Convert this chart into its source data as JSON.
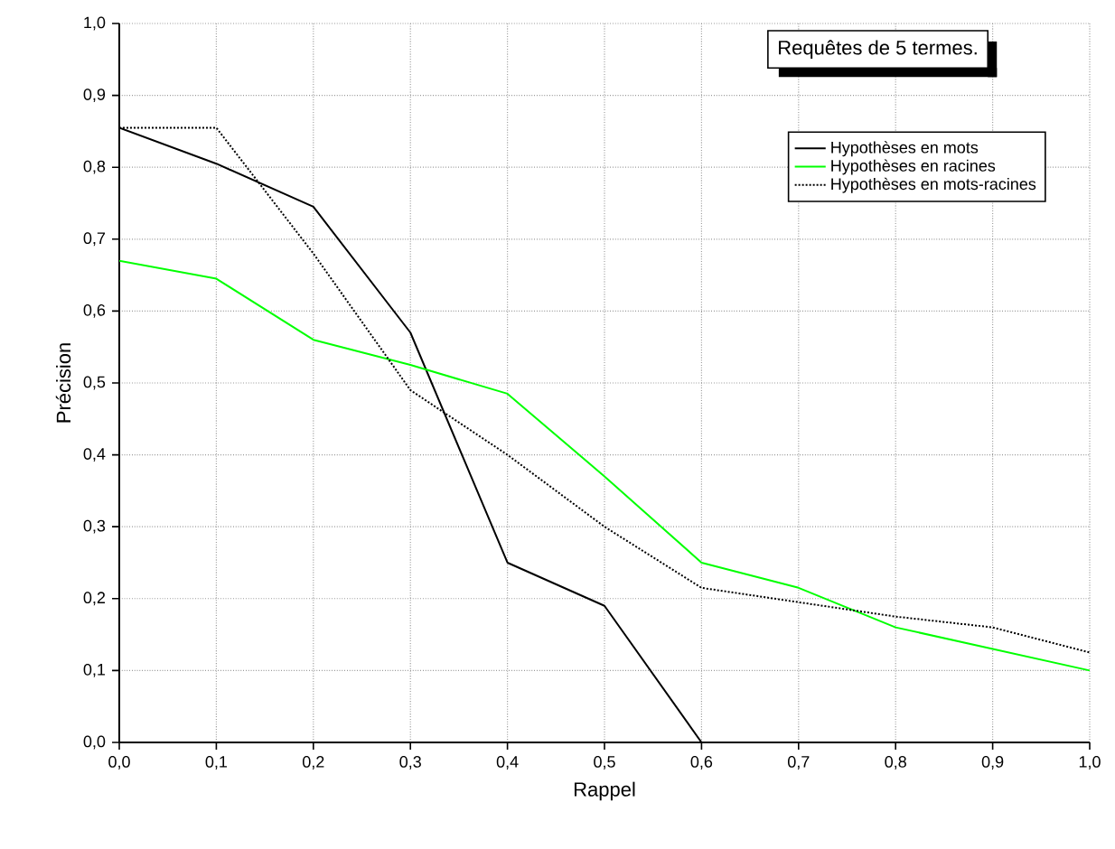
{
  "chart_data": {
    "type": "line",
    "title": "Requêtes de 5 termes.",
    "xlabel": "Rappel",
    "ylabel": "Précision",
    "xlim": [
      0,
      1
    ],
    "ylim": [
      0,
      1
    ],
    "xticks": [
      {
        "value": 0,
        "label": "0,0"
      },
      {
        "value": 0.1,
        "label": "0,1"
      },
      {
        "value": 0.2,
        "label": "0,2"
      },
      {
        "value": 0.3,
        "label": "0,3"
      },
      {
        "value": 0.4,
        "label": "0,4"
      },
      {
        "value": 0.5,
        "label": "0,5"
      },
      {
        "value": 0.6,
        "label": "0,6"
      },
      {
        "value": 0.7,
        "label": "0,7"
      },
      {
        "value": 0.8,
        "label": "0,8"
      },
      {
        "value": 0.9,
        "label": "0,9"
      },
      {
        "value": 1,
        "label": "1,0"
      }
    ],
    "yticks": [
      {
        "value": 0,
        "label": "0,0"
      },
      {
        "value": 0.1,
        "label": "0,1"
      },
      {
        "value": 0.2,
        "label": "0,2"
      },
      {
        "value": 0.3,
        "label": "0,3"
      },
      {
        "value": 0.4,
        "label": "0,4"
      },
      {
        "value": 0.5,
        "label": "0,5"
      },
      {
        "value": 0.6,
        "label": "0,6"
      },
      {
        "value": 0.7,
        "label": "0,7"
      },
      {
        "value": 0.8,
        "label": "0,8"
      },
      {
        "value": 0.9,
        "label": "0,9"
      },
      {
        "value": 1,
        "label": "1,0"
      }
    ],
    "grid": true,
    "legend": "top right",
    "series": [
      {
        "name": "Hypothèses en mots",
        "color": "#000000",
        "line_style": "solid",
        "x": [
          0,
          0.1,
          0.2,
          0.3,
          0.4,
          0.5,
          0.6
        ],
        "values": [
          0.855,
          0.805,
          0.745,
          0.57,
          0.25,
          0.19,
          0.0
        ]
      },
      {
        "name": "Hypothèses en racines",
        "color": "#00ff00",
        "line_style": "solid",
        "x": [
          0,
          0.1,
          0.2,
          0.3,
          0.4,
          0.5,
          0.6,
          0.7,
          0.8,
          0.9,
          1.0
        ],
        "values": [
          0.67,
          0.645,
          0.56,
          0.525,
          0.485,
          0.37,
          0.25,
          0.215,
          0.16,
          0.13,
          0.1
        ]
      },
      {
        "name": "Hypothèses en mots-racines",
        "color": "#000000",
        "line_style": "dotted",
        "x": [
          0,
          0.1,
          0.2,
          0.3,
          0.4,
          0.5,
          0.6,
          0.7,
          0.8,
          0.9,
          1.0
        ],
        "values": [
          0.855,
          0.855,
          0.68,
          0.49,
          0.4,
          0.3,
          0.215,
          0.195,
          0.175,
          0.16,
          0.125
        ]
      }
    ]
  }
}
